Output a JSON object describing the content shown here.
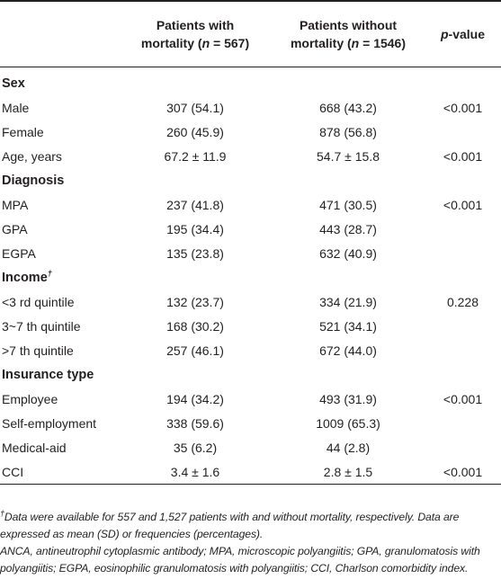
{
  "header": {
    "col_label": "",
    "col_mortality_line1": "Patients with",
    "col_mortality_line2": "mortality (n = 567)",
    "col_no_mortality_line1": "Patients without",
    "col_no_mortality_line2": "mortality (n = 1546)",
    "col_p": "p-value"
  },
  "rows": [
    {
      "type": "section",
      "label": "Sex",
      "a": "",
      "b": "",
      "p": ""
    },
    {
      "type": "data",
      "label": "Male",
      "a": "307 (54.1)",
      "b": "668 (43.2)",
      "p": "<0.001"
    },
    {
      "type": "data",
      "label": "Female",
      "a": "260 (45.9)",
      "b": "878 (56.8)",
      "p": ""
    },
    {
      "type": "data",
      "label": "Age, years",
      "a": "67.2 ± 11.9",
      "b": "54.7 ± 15.8",
      "p": "<0.001"
    },
    {
      "type": "section",
      "label": "Diagnosis",
      "a": "",
      "b": "",
      "p": ""
    },
    {
      "type": "data",
      "label": "MPA",
      "a": "237 (41.8)",
      "b": "471 (30.5)",
      "p": "<0.001"
    },
    {
      "type": "data",
      "label": "GPA",
      "a": "195 (34.4)",
      "b": "443 (28.7)",
      "p": ""
    },
    {
      "type": "data",
      "label": "EGPA",
      "a": "135 (23.8)",
      "b": "632 (40.9)",
      "p": ""
    },
    {
      "type": "section",
      "label": "Income",
      "a": "",
      "b": "",
      "p": ""
    },
    {
      "type": "data",
      "label": "<3 rd quintile",
      "a": "132 (23.7)",
      "b": "334 (21.9)",
      "p": "0.228"
    },
    {
      "type": "data",
      "label": "3~7 th quintile",
      "a": "168 (30.2)",
      "b": "521 (34.1)",
      "p": ""
    },
    {
      "type": "data",
      "label": ">7 th quintile",
      "a": "257 (46.1)",
      "b": "672 (44.0)",
      "p": ""
    },
    {
      "type": "section",
      "label": "Insurance type",
      "a": "",
      "b": "",
      "p": ""
    },
    {
      "type": "data",
      "label": "Employee",
      "a": "194 (34.2)",
      "b": "493 (31.9)",
      "p": "<0.001"
    },
    {
      "type": "data",
      "label": "Self-employment",
      "a": "338 (59.6)",
      "b": "1009 (65.3)",
      "p": ""
    },
    {
      "type": "data",
      "label": "Medical-aid",
      "a": "35 (6.2)",
      "b": "44 (2.8)",
      "p": ""
    },
    {
      "type": "data",
      "label": "CCI",
      "a": "3.4 ± 1.6",
      "b": "2.8 ± 1.5",
      "p": "<0.001"
    }
  ],
  "income_marker": "†",
  "footnotes": {
    "dagger": "†",
    "note1": "Data were available for 557 and 1,527 patients with and without mortality, respectively. Data are expressed as mean (SD) or frequencies (percentages).",
    "note2": "ANCA, antineutrophil cytoplasmic antibody; MPA, microscopic polyangiitis; GPA, granulomatosis with polyangiitis; EGPA, eosinophilic granulomatosis with polyangiitis; CCI, Charlson comorbidity index."
  }
}
